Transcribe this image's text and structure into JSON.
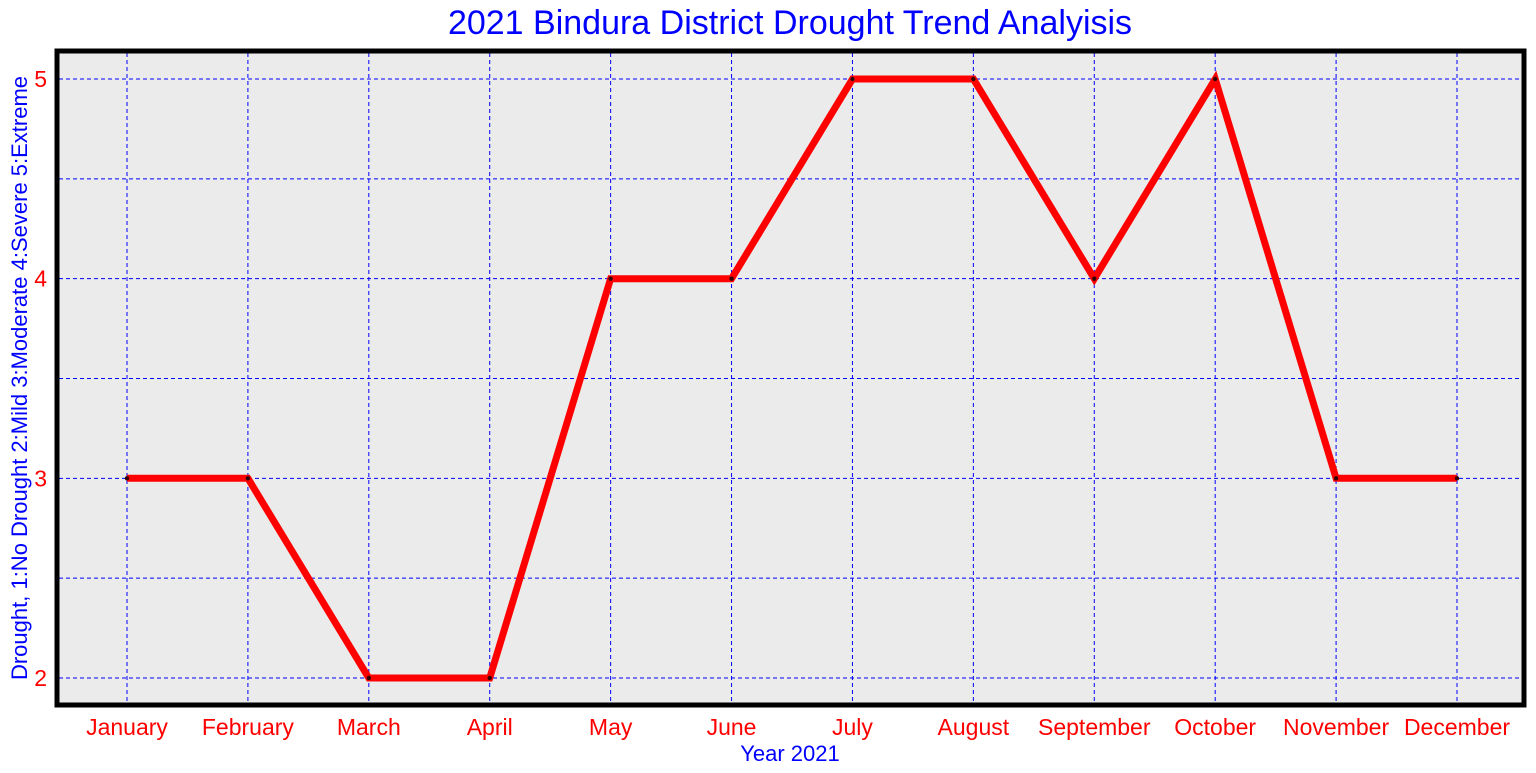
{
  "chart_data": {
    "type": "line",
    "title": "2021 Bindura District Drought Trend Analyisis",
    "xlabel": "Year 2021",
    "ylabel": "Drought, 1:No Drought 2:Mild 3:Moderate 4:Severe 5:Extreme",
    "categories": [
      "January",
      "February",
      "March",
      "April",
      "May",
      "June",
      "July",
      "August",
      "September",
      "October",
      "November",
      "December"
    ],
    "series": [
      {
        "values": [
          3,
          3,
          2,
          2,
          4,
          4,
          5,
          5,
          4,
          5,
          3,
          3
        ]
      }
    ],
    "yticks": [
      "2",
      "3",
      "4",
      "5"
    ],
    "ylim": [
      1.86,
      5.15
    ],
    "grid": true,
    "grid_style": "dashed",
    "colors": {
      "line": "#ff0000",
      "grid": "#0000ff",
      "plot_background": "#ebebeb",
      "frame": "#000000",
      "title": "#0000ff",
      "axis_label": "#0000ff",
      "tick_label": "#ff0000"
    }
  }
}
